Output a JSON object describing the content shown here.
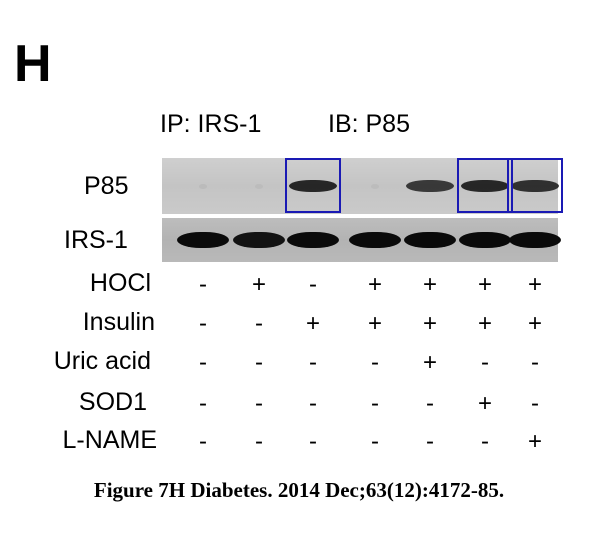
{
  "panel_label": "H",
  "ip_label": "IP: IRS-1",
  "ib_label": "IB: P85",
  "blots": [
    {
      "label": "P85",
      "band_intensity": [
        0.05,
        0.04,
        0.85,
        0.03,
        0.75,
        0.85,
        0.8
      ]
    },
    {
      "label": "IRS-1",
      "band_intensity": [
        1,
        0.95,
        1,
        1,
        1,
        1,
        1
      ]
    }
  ],
  "highlighted_lanes": [
    3,
    6,
    7
  ],
  "conditions": [
    {
      "label": "HOCl",
      "values": [
        "-",
        "+",
        "-",
        "+",
        "+",
        "+",
        "+"
      ]
    },
    {
      "label": "Insulin",
      "values": [
        "-",
        "-",
        "+",
        "+",
        "+",
        "+",
        "+"
      ]
    },
    {
      "label": "Uric acid",
      "values": [
        "-",
        "-",
        "-",
        "-",
        "+",
        "-",
        "-"
      ]
    },
    {
      "label": "SOD1",
      "values": [
        "-",
        "-",
        "-",
        "-",
        "-",
        "+",
        "-"
      ]
    },
    {
      "label": "L-NAME",
      "values": [
        "-",
        "-",
        "-",
        "-",
        "-",
        "-",
        "+"
      ]
    }
  ],
  "caption": "Figure 7H Diabetes. 2014 Dec;63(12):4172-85.",
  "colors": {
    "highlight_box": "#1a1ab4",
    "band": "#0a0a0a"
  }
}
